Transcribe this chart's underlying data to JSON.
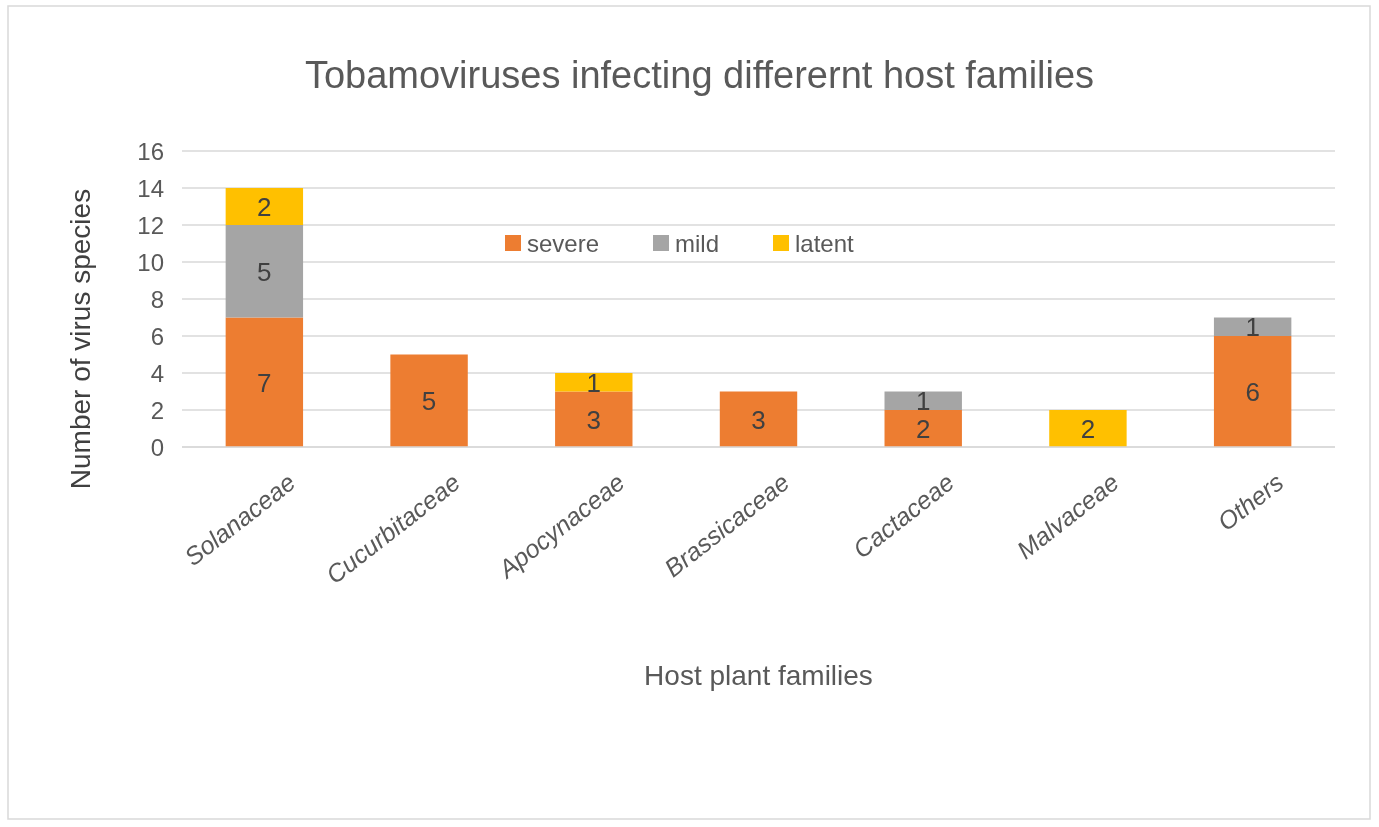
{
  "chart_data": {
    "type": "bar",
    "title": "Tobamoviruses  infecting differernt host families",
    "xlabel": "Host plant families",
    "ylabel": "Number of virus species",
    "categories": [
      "Solanaceae",
      "Cucurbitaceae",
      "Apocynaceae",
      "Brassicaceae",
      "Cactaceae",
      "Malvaceae",
      "Others"
    ],
    "stacked": true,
    "series": [
      {
        "name": "severe",
        "color": "#ed7d31",
        "values": [
          7,
          5,
          3,
          3,
          2,
          0,
          6
        ],
        "value_labels": [
          "7",
          "5",
          "3",
          "3",
          "2",
          null,
          "6"
        ]
      },
      {
        "name": "mild",
        "color": "#a5a5a5",
        "values": [
          5,
          0,
          0,
          0,
          1,
          0,
          1
        ],
        "value_labels": [
          "5",
          null,
          null,
          null,
          "1",
          null,
          "1"
        ]
      },
      {
        "name": "latent",
        "color": "#ffc000",
        "values": [
          2,
          0,
          1,
          0,
          0,
          2,
          0
        ],
        "value_labels": [
          "2",
          null,
          "1",
          null,
          null,
          "2",
          null
        ]
      }
    ],
    "ylim": [
      0,
      16
    ],
    "yticks": [
      0,
      2,
      4,
      6,
      8,
      10,
      12,
      14,
      16
    ],
    "grid": "y",
    "legend": "top"
  }
}
